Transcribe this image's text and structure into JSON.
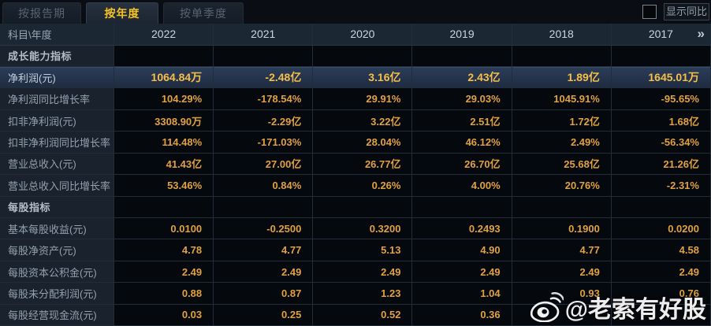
{
  "tabs": [
    {
      "label": "按报告期",
      "active": false
    },
    {
      "label": "按年度",
      "active": true
    },
    {
      "label": "按单季度",
      "active": false
    }
  ],
  "controls": {
    "show_yoy_label": "显示同比",
    "yoy_checkbox_checked": false
  },
  "table": {
    "corner_label": "科目\\年度",
    "years": [
      "2022",
      "2021",
      "2020",
      "2019",
      "2018",
      "2017"
    ],
    "more_years_icon": "»",
    "rows": [
      {
        "type": "section",
        "label": "成长能力指标",
        "values": [
          "",
          "",
          "",
          "",
          "",
          ""
        ]
      },
      {
        "type": "data",
        "highlight": true,
        "label": "净利润(元)",
        "values": [
          "1064.84万",
          "-2.48亿",
          "3.16亿",
          "2.43亿",
          "1.89亿",
          "1645.01万"
        ]
      },
      {
        "type": "data",
        "label": "净利润同比增长率",
        "values": [
          "104.29%",
          "-178.54%",
          "29.91%",
          "29.03%",
          "1045.91%",
          "-95.65%"
        ]
      },
      {
        "type": "data",
        "label": "扣非净利润(元)",
        "values": [
          "3308.90万",
          "-2.29亿",
          "3.22亿",
          "2.51亿",
          "1.72亿",
          "1.68亿"
        ]
      },
      {
        "type": "data",
        "label": "扣非净利润同比增长率",
        "values": [
          "114.48%",
          "-171.03%",
          "28.04%",
          "46.12%",
          "2.49%",
          "-56.34%"
        ]
      },
      {
        "type": "data",
        "label": "营业总收入(元)",
        "values": [
          "41.43亿",
          "27.00亿",
          "26.77亿",
          "26.70亿",
          "25.68亿",
          "21.26亿"
        ]
      },
      {
        "type": "data",
        "label": "营业总收入同比增长率",
        "values": [
          "53.46%",
          "0.84%",
          "0.26%",
          "4.00%",
          "20.76%",
          "-2.31%"
        ]
      },
      {
        "type": "section",
        "label": "每股指标",
        "values": [
          "",
          "",
          "",
          "",
          "",
          ""
        ]
      },
      {
        "type": "data",
        "label": "基本每股收益(元)",
        "values": [
          "0.0100",
          "-0.2500",
          "0.3200",
          "0.2493",
          "0.1900",
          "0.0200"
        ]
      },
      {
        "type": "data",
        "label": "每股净资产(元)",
        "values": [
          "4.78",
          "4.77",
          "5.13",
          "4.90",
          "4.77",
          "4.58"
        ]
      },
      {
        "type": "data",
        "label": "每股资本公积金(元)",
        "values": [
          "2.49",
          "2.49",
          "2.49",
          "2.49",
          "2.49",
          "2.49"
        ]
      },
      {
        "type": "data",
        "label": "每股未分配利润(元)",
        "values": [
          "0.88",
          "0.87",
          "1.23",
          "1.04",
          "0.93",
          "0.76"
        ]
      },
      {
        "type": "data",
        "label": "每股经营现金流(元)",
        "values": [
          "0.03",
          "0.25",
          "0.52",
          "0.36",
          "",
          ""
        ]
      }
    ]
  },
  "watermark": {
    "icon": "weibo-logo",
    "text": "@老索有好股"
  },
  "colors": {
    "background": "#0a0e14",
    "active_tab_text": "#f5c322",
    "value_text": "#e0a13a",
    "highlight_row_bg": "#253750",
    "header_bg": "#1c2734",
    "label_col_bg": "#19222d",
    "grid_line": "#232d3a"
  }
}
